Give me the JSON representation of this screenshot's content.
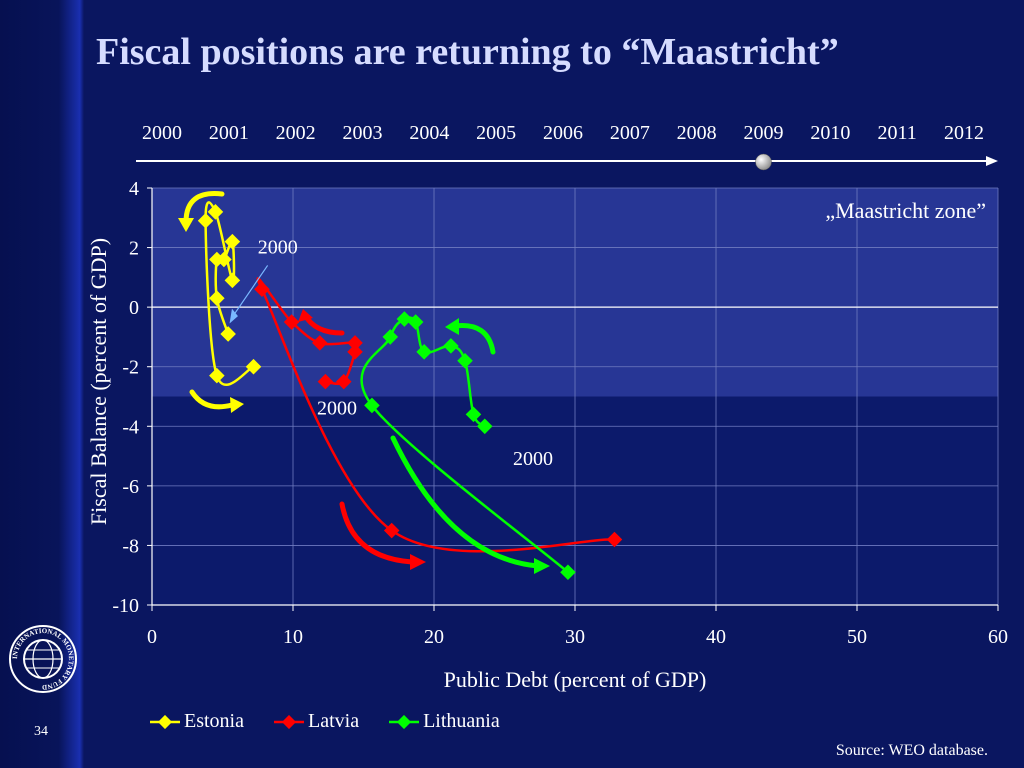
{
  "slide": {
    "title": "Fiscal positions are returning to “Maastricht”",
    "page_number": "34",
    "source": "Source: WEO database.",
    "logo_text": "INTERNATIONAL MONETARY FUND"
  },
  "chart_data": {
    "type": "scatter",
    "connected": true,
    "xlabel": "Public Debt (percent of GDP)",
    "ylabel": "Fiscal Balance (percent of GDP)",
    "xlim": [
      0,
      60
    ],
    "ylim": [
      -10,
      4
    ],
    "x_ticks": [
      0,
      10,
      20,
      30,
      40,
      50,
      60
    ],
    "y_ticks": [
      4,
      2,
      0,
      -2,
      -4,
      -6,
      -8,
      -10
    ],
    "grid": true,
    "legend_position": "bottom",
    "timeline": {
      "years": [
        "2000",
        "2001",
        "2002",
        "2003",
        "2004",
        "2005",
        "2006",
        "2007",
        "2008",
        "2009",
        "2010",
        "2011",
        "2012"
      ],
      "marker_year": "2009"
    },
    "maastricht_zone": {
      "label": "„Maastricht zone”",
      "y_min": -3,
      "y_max": 4,
      "color": "#2a3a9a"
    },
    "annotations": [
      {
        "text": "2000",
        "series": "Estonia"
      },
      {
        "text": "2000",
        "series": "Latvia"
      },
      {
        "text": "2000",
        "series": "Lithuania"
      }
    ],
    "series": [
      {
        "name": "Estonia",
        "color": "#ffff00",
        "points": [
          [
            5.4,
            -0.9
          ],
          [
            4.6,
            0.3
          ],
          [
            4.6,
            1.6
          ],
          [
            5.1,
            1.6
          ],
          [
            5.7,
            2.2
          ],
          [
            5.7,
            0.9
          ],
          [
            4.5,
            3.2
          ],
          [
            3.8,
            2.9
          ],
          [
            4.6,
            -2.3
          ],
          [
            7.2,
            -2.0
          ]
        ]
      },
      {
        "name": "Latvia",
        "color": "#ff0000",
        "points": [
          [
            12.3,
            -2.5
          ],
          [
            13.6,
            -2.5
          ],
          [
            14.4,
            -1.5
          ],
          [
            14.4,
            -1.2
          ],
          [
            11.9,
            -1.2
          ],
          [
            9.9,
            -0.5
          ],
          [
            7.8,
            0.6
          ],
          [
            17.0,
            -7.5
          ],
          [
            32.8,
            -7.8
          ]
        ]
      },
      {
        "name": "Lithuania",
        "color": "#00ff00",
        "points": [
          [
            23.6,
            -4.0
          ],
          [
            22.8,
            -3.6
          ],
          [
            22.2,
            -1.8
          ],
          [
            21.2,
            -1.3
          ],
          [
            19.3,
            -1.5
          ],
          [
            18.7,
            -0.5
          ],
          [
            17.9,
            -0.4
          ],
          [
            16.9,
            -1.0
          ],
          [
            15.6,
            -3.3
          ],
          [
            29.5,
            -8.9
          ]
        ]
      }
    ]
  }
}
